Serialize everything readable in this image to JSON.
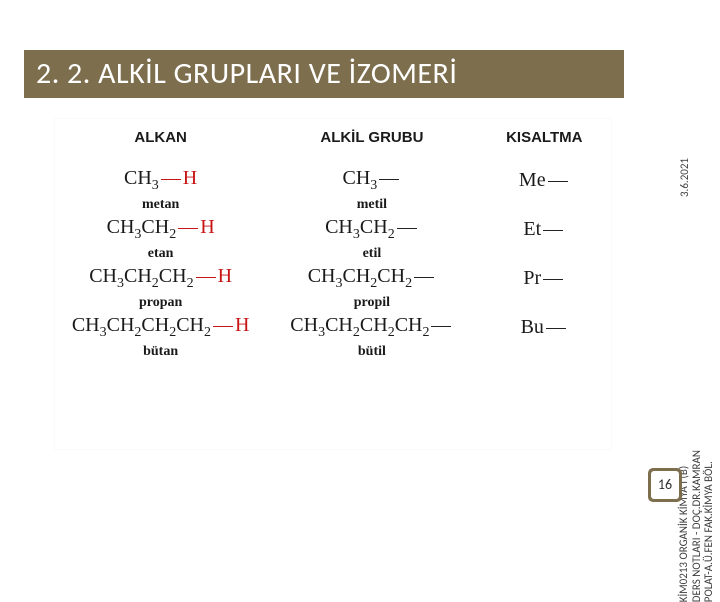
{
  "title": "2. 2. ALKİL GRUPLARI VE İZOMERİ",
  "headers": {
    "alkan": "ALKAN",
    "alkil": "ALKİL GRUBU",
    "kisa": "KISALTMA"
  },
  "rows": [
    {
      "alkan_formula": "CH<sub>3</sub><span class='dash-red'></span><span class='h-red'>H</span>",
      "alkan_label": "metan",
      "alkil_formula": "CH<sub>3</sub><span class='dash'></span>",
      "alkil_label": "metil",
      "abbr": "Me<span class='dash'></span>"
    },
    {
      "alkan_formula": "CH<sub>3</sub>CH<sub>2</sub><span class='dash-red'></span><span class='h-red'>H</span>",
      "alkan_label": "etan",
      "alkil_formula": "CH<sub>3</sub>CH<sub>2</sub><span class='dash'></span>",
      "alkil_label": "etil",
      "abbr": "Et<span class='dash'></span>"
    },
    {
      "alkan_formula": "CH<sub>3</sub>CH<sub>2</sub>CH<sub>2</sub><span class='dash-red'></span><span class='h-red'>H</span>",
      "alkan_label": "propan",
      "alkil_formula": "CH<sub>3</sub>CH<sub>2</sub>CH<sub>2</sub><span class='dash'></span>",
      "alkil_label": "propil",
      "abbr": "Pr<span class='dash'></span>"
    },
    {
      "alkan_formula": "CH<sub>3</sub>CH<sub>2</sub>CH<sub>2</sub>CH<sub>2</sub><span class='dash-red'></span><span class='h-red'>H</span>",
      "alkan_label": "bütan",
      "alkil_formula": "CH<sub>3</sub>CH<sub>2</sub>CH<sub>2</sub>CH<sub>2</sub><span class='dash'></span>",
      "alkil_label": "bütil",
      "abbr": "Bu<span class='dash'></span>"
    }
  ],
  "side": {
    "line1": "KİM0213 ORGANİK KİMYA I (B)",
    "line2": "DERS NOTLARI - DOÇ.DR.KAMRAN",
    "line3": "POLAT-A.Ü.FEN FAK.KİMYA BÖL.",
    "date": "3.6.2021"
  },
  "page": "16",
  "colors": {
    "bar": "#7d6f4e",
    "h_red": "#c81414",
    "text": "#1a1a1a",
    "bg": "#ffffff"
  }
}
